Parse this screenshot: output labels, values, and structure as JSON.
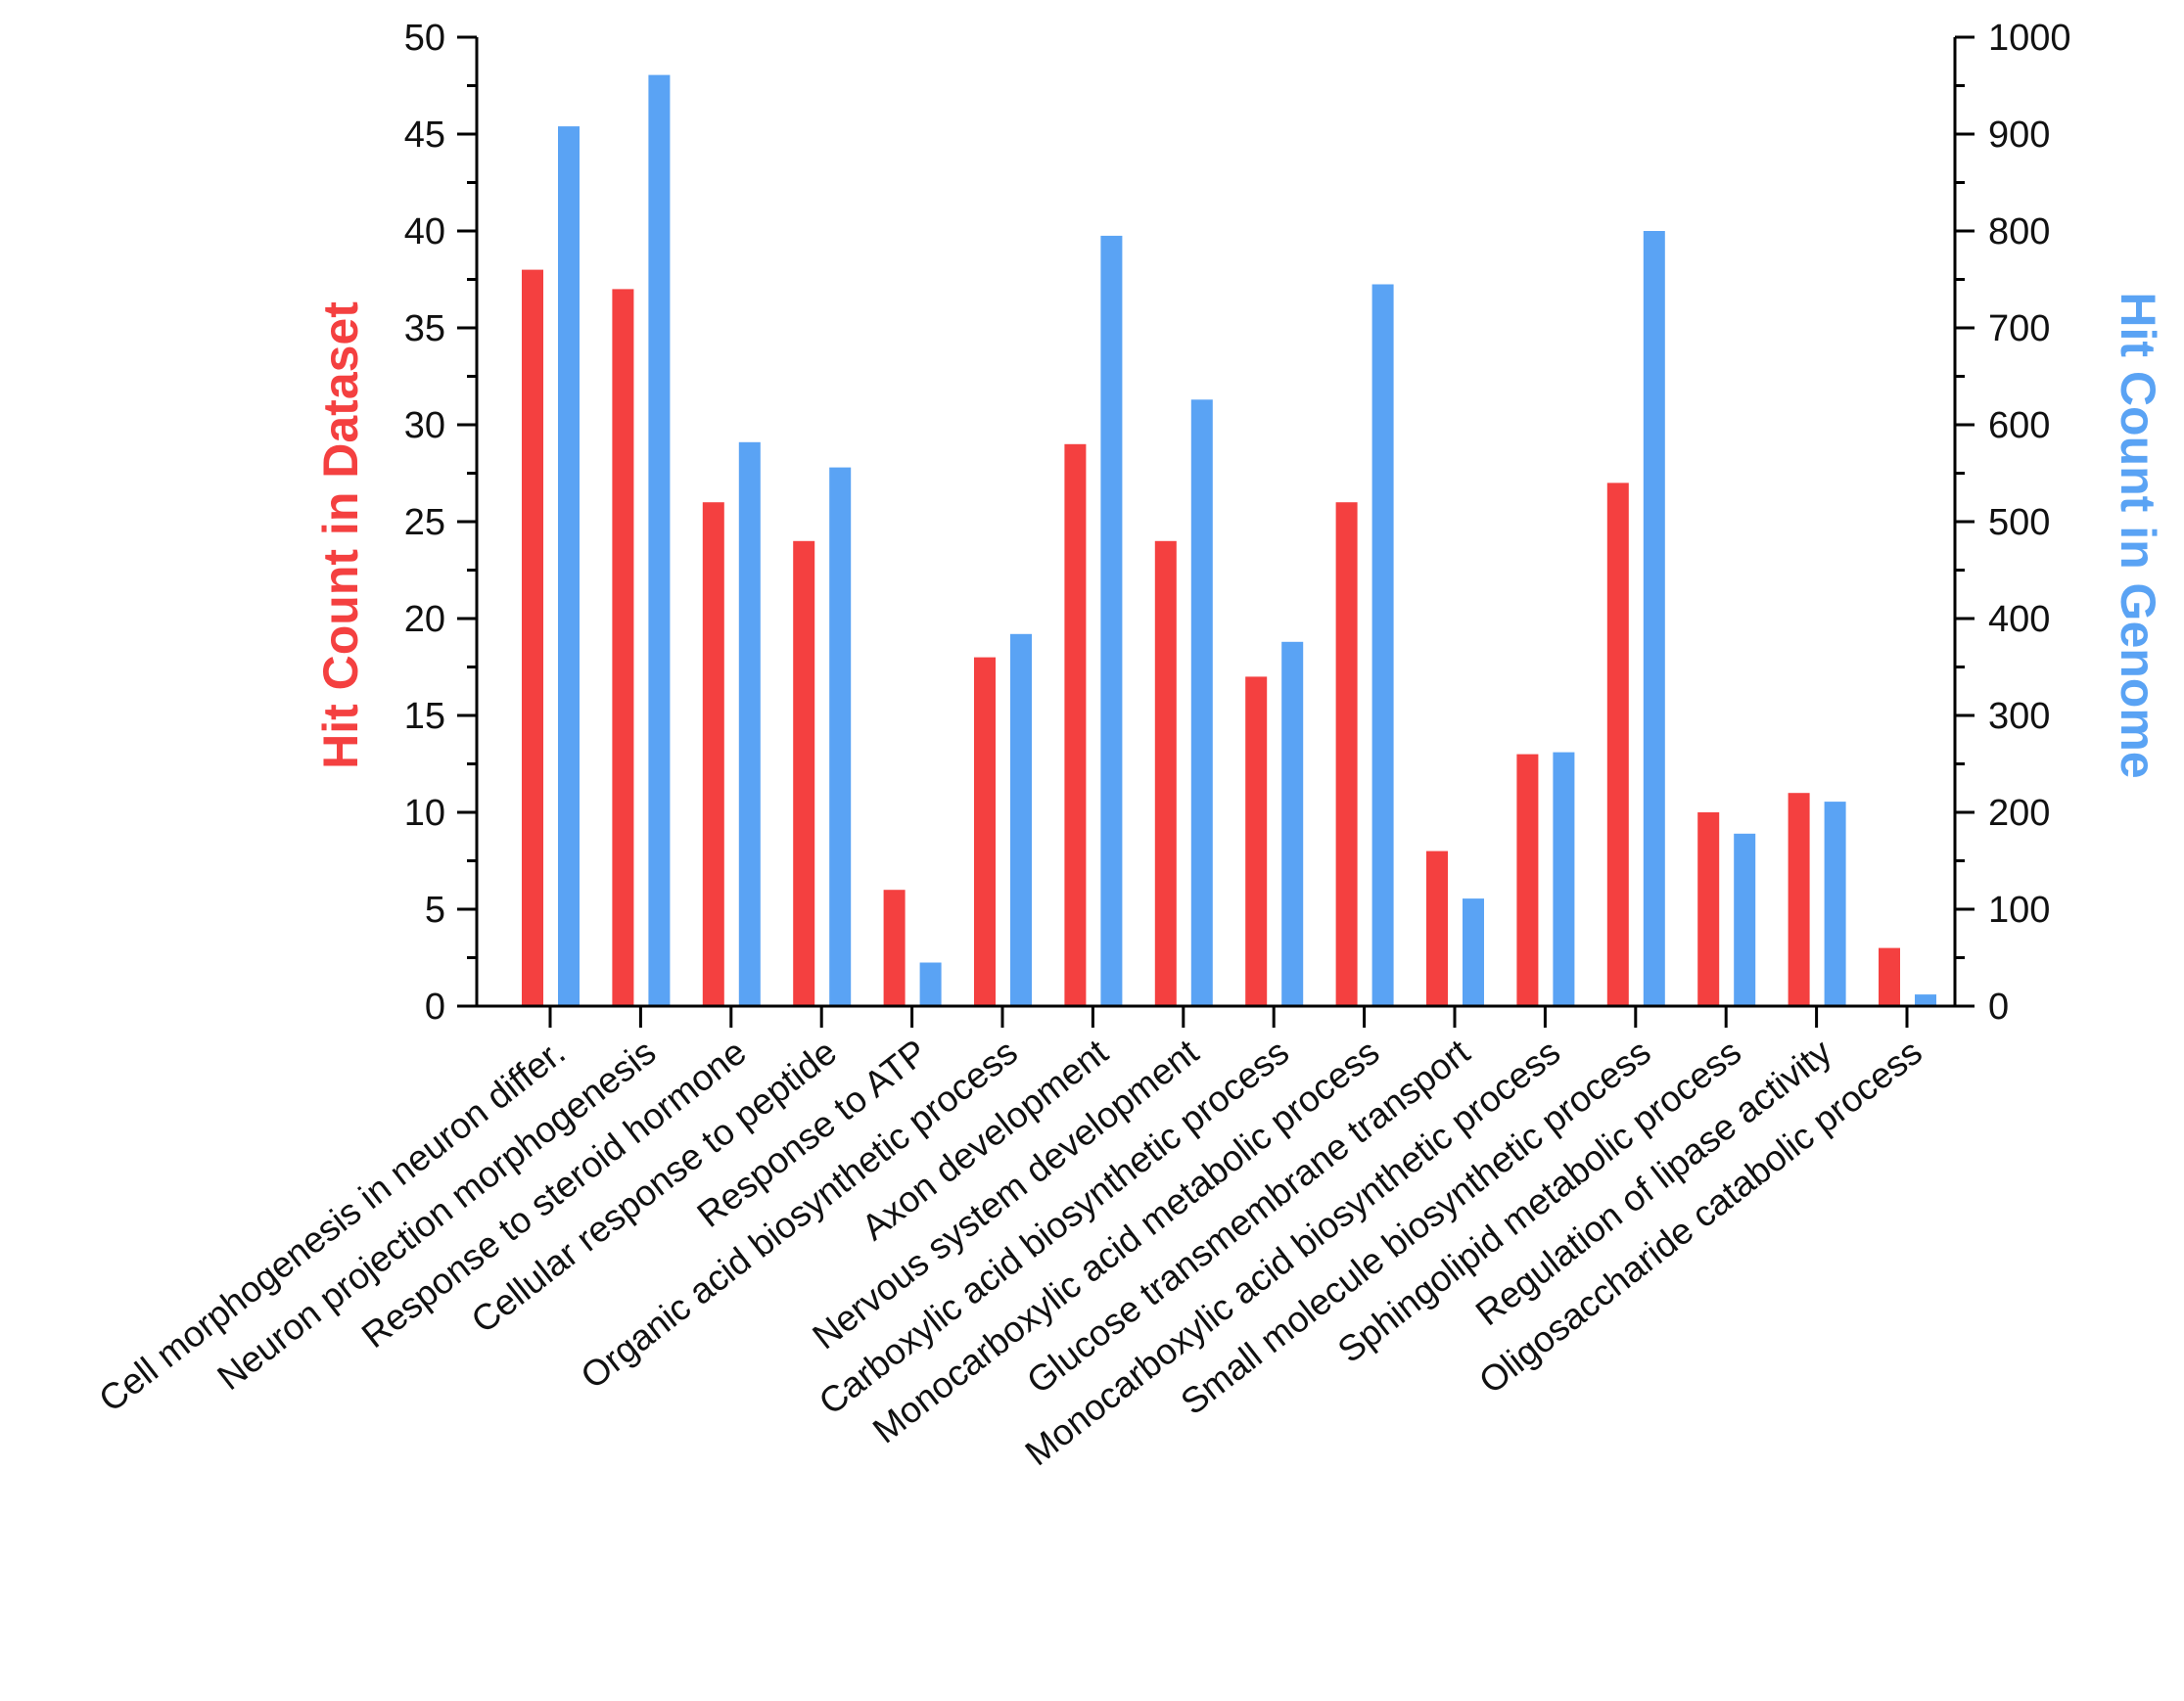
{
  "chart_data": {
    "type": "bar",
    "title": "",
    "categories": [
      "Cell morphogenesis in neuron differ.",
      "Neuron projection morphogenesis",
      "Response to steroid hormone",
      "Cellular response to peptide",
      "Response to ATP",
      "Organic acid biosynthetic process",
      "Axon development",
      "Nervous system development",
      "Carboxylic acid biosynthetic process",
      "Monocarboxylic acid metabolic process",
      "Glucose transmembrane transport",
      "Monocarboxylic acid biosynthetic process",
      "Small molecule biosynthetic process",
      "Sphingolipid metabolic process",
      "Regulation of lipase activity",
      "Oligosaccharide catabolic process"
    ],
    "series": [
      {
        "name": "Hit Count in Dataset",
        "axis": "left",
        "color": "#f44040",
        "values": [
          38,
          37,
          26,
          24,
          6,
          18,
          29,
          24,
          17,
          26,
          8,
          13,
          27,
          10,
          11,
          3
        ]
      },
      {
        "name": "Hit Count in Genome",
        "axis": "right",
        "color": "#5aa3f4",
        "values": [
          908,
          961,
          582,
          556,
          45,
          384,
          795,
          626,
          376,
          745,
          111,
          262,
          800,
          178,
          211,
          12
        ]
      }
    ],
    "y_left": {
      "label": "Hit Count in Dataset",
      "color": "#f44040",
      "ylim": [
        0,
        50
      ],
      "ticks": [
        "0",
        "5",
        "10",
        "15",
        "20",
        "25",
        "30",
        "35",
        "40",
        "45",
        "50"
      ]
    },
    "y_right": {
      "label": "Hit Count in Genome",
      "color": "#5aa3f4",
      "ylim": [
        0,
        1000
      ],
      "ticks": [
        "0",
        "100",
        "200",
        "300",
        "400",
        "500",
        "600",
        "700",
        "800",
        "900",
        "1000"
      ]
    },
    "xlabel": "",
    "grid": false,
    "legend": "none"
  }
}
